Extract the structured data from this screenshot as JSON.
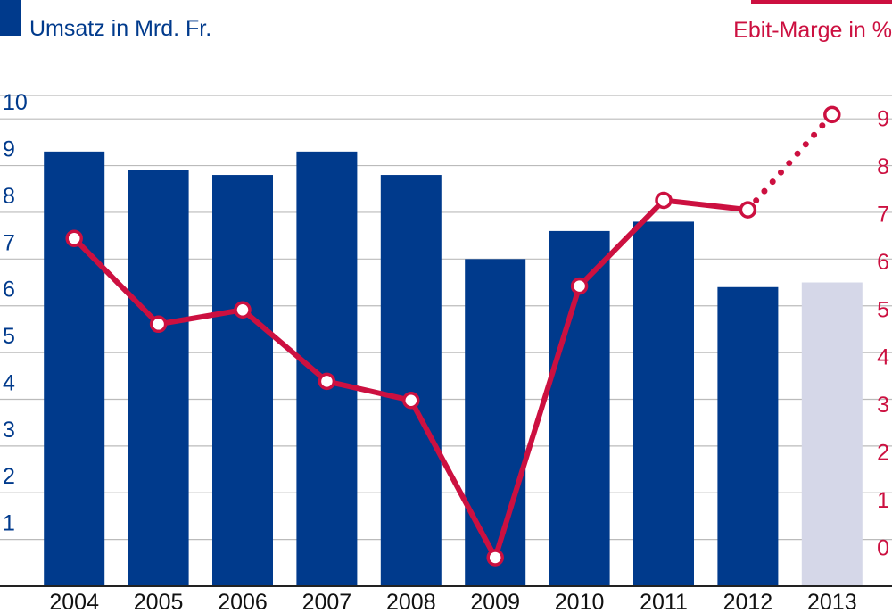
{
  "colors": {
    "bar": "#003a8c",
    "bar_forecast": "#d5d7e8",
    "line": "#cc1040",
    "left_axis_text": "#003a8c",
    "right_axis_text": "#cc1040",
    "grid": "#bbbbbb",
    "baseline": "#222222",
    "xtick_text": "#111111"
  },
  "chart_data": {
    "type": "bar",
    "categories": [
      "2004",
      "2005",
      "2006",
      "2007",
      "2008",
      "2009",
      "2010",
      "2011",
      "2012",
      "2013"
    ],
    "series": [
      {
        "name": "Umsatz in Mrd. Fr.",
        "kind": "bar",
        "axis": "left",
        "values": [
          9.3,
          8.9,
          8.8,
          9.3,
          8.8,
          7.0,
          7.6,
          7.8,
          6.4,
          6.5
        ],
        "forecast_from_index": 9
      },
      {
        "name": "Ebit-Marge in %",
        "kind": "line",
        "axis": "right",
        "values": [
          6.5,
          4.7,
          5.0,
          3.5,
          3.1,
          -0.2,
          5.5,
          7.3,
          7.1,
          9.1
        ],
        "forecast_from_index": 9
      }
    ],
    "left_axis": {
      "ticks": [
        "1",
        "2",
        "3",
        "4",
        "5",
        "6",
        "7",
        "8",
        "9",
        "10"
      ],
      "range": [
        0,
        10.5
      ]
    },
    "right_axis": {
      "ticks": [
        "0",
        "1",
        "2",
        "3",
        "4",
        "5",
        "6",
        "7",
        "8",
        "9"
      ],
      "range": [
        -0.8,
        9.5
      ]
    },
    "legend": {
      "left": "Umsatz in Mrd. Fr.",
      "right": "Ebit-Marge in %",
      "placement": "top"
    },
    "grid": true
  }
}
